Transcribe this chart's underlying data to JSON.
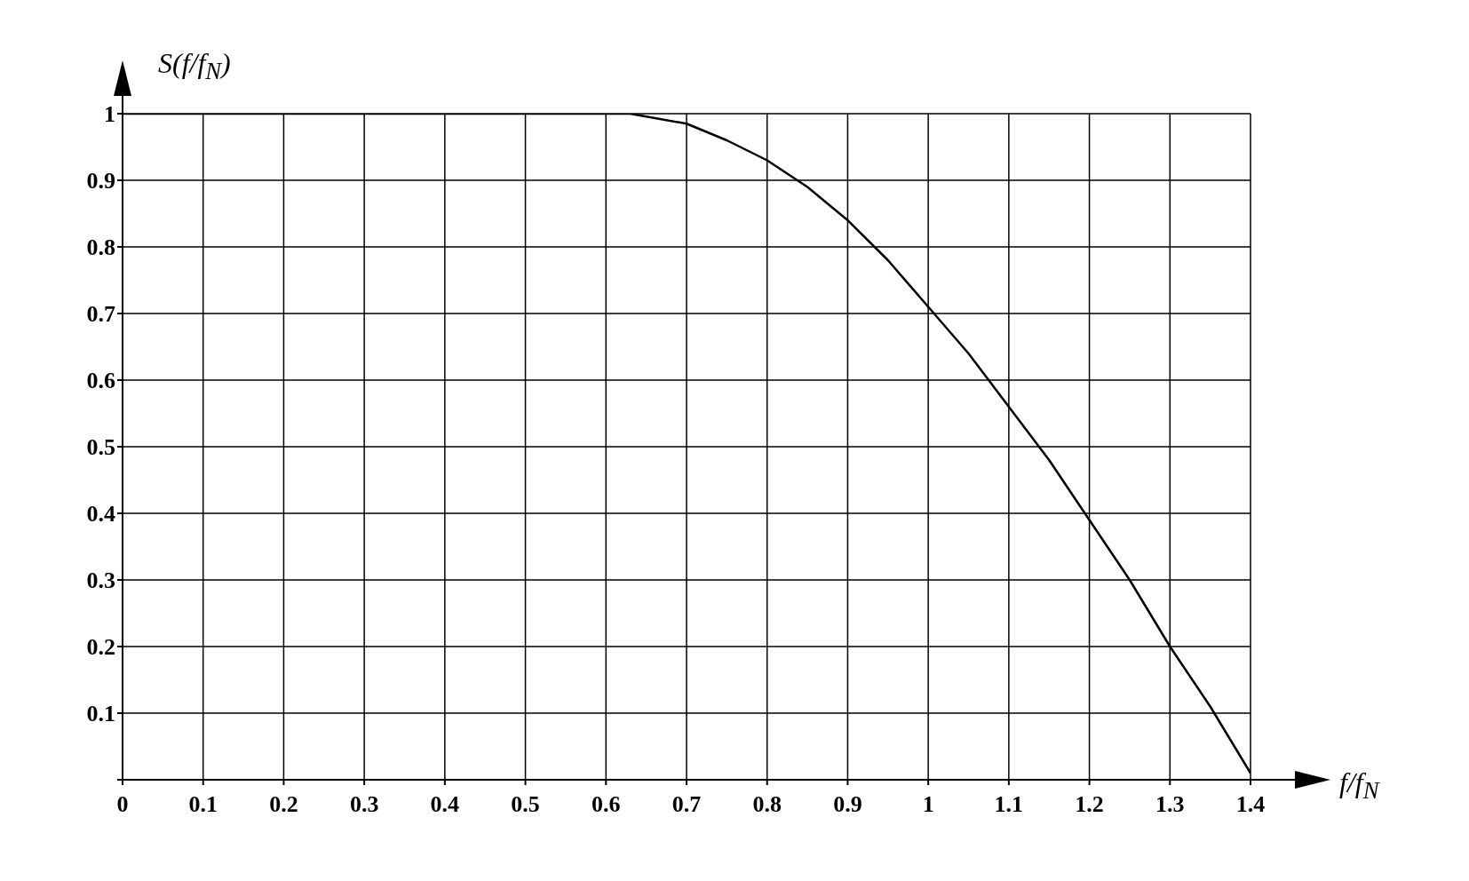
{
  "chart_data": {
    "type": "line",
    "xlabel": "f/f$_{N}$",
    "ylabel": "S(f/f$_{N}$)",
    "x": [
      0,
      0.1,
      0.2,
      0.3,
      0.4,
      0.5,
      0.6,
      0.63,
      0.7,
      0.75,
      0.8,
      0.85,
      0.9,
      0.95,
      1.0,
      1.05,
      1.1,
      1.15,
      1.2,
      1.25,
      1.3,
      1.35,
      1.4
    ],
    "series": [
      {
        "color": "#000000",
        "values": [
          1,
          1,
          1,
          1,
          1,
          1,
          1,
          1,
          0.985,
          0.96,
          0.93,
          0.89,
          0.84,
          0.78,
          0.71,
          0.64,
          0.56,
          0.48,
          0.39,
          0.3,
          0.2,
          0.11,
          0.01
        ]
      }
    ],
    "xlim": [
      0,
      1.4
    ],
    "xticks": [
      0,
      0.1,
      0.2,
      0.3,
      0.4,
      0.5,
      0.6,
      0.7,
      0.8,
      0.9,
      1,
      1.1,
      1.2,
      1.3,
      1.4
    ],
    "ylim": [
      0,
      1
    ],
    "yticks": [
      {
        "value": 0,
        "label": null
      },
      0.1,
      0.2,
      0.3,
      0.4,
      0.5,
      0.6,
      0.7,
      0.8,
      0.9,
      1
    ],
    "grid": true,
    "marker": "none",
    "line_style": "solid"
  }
}
